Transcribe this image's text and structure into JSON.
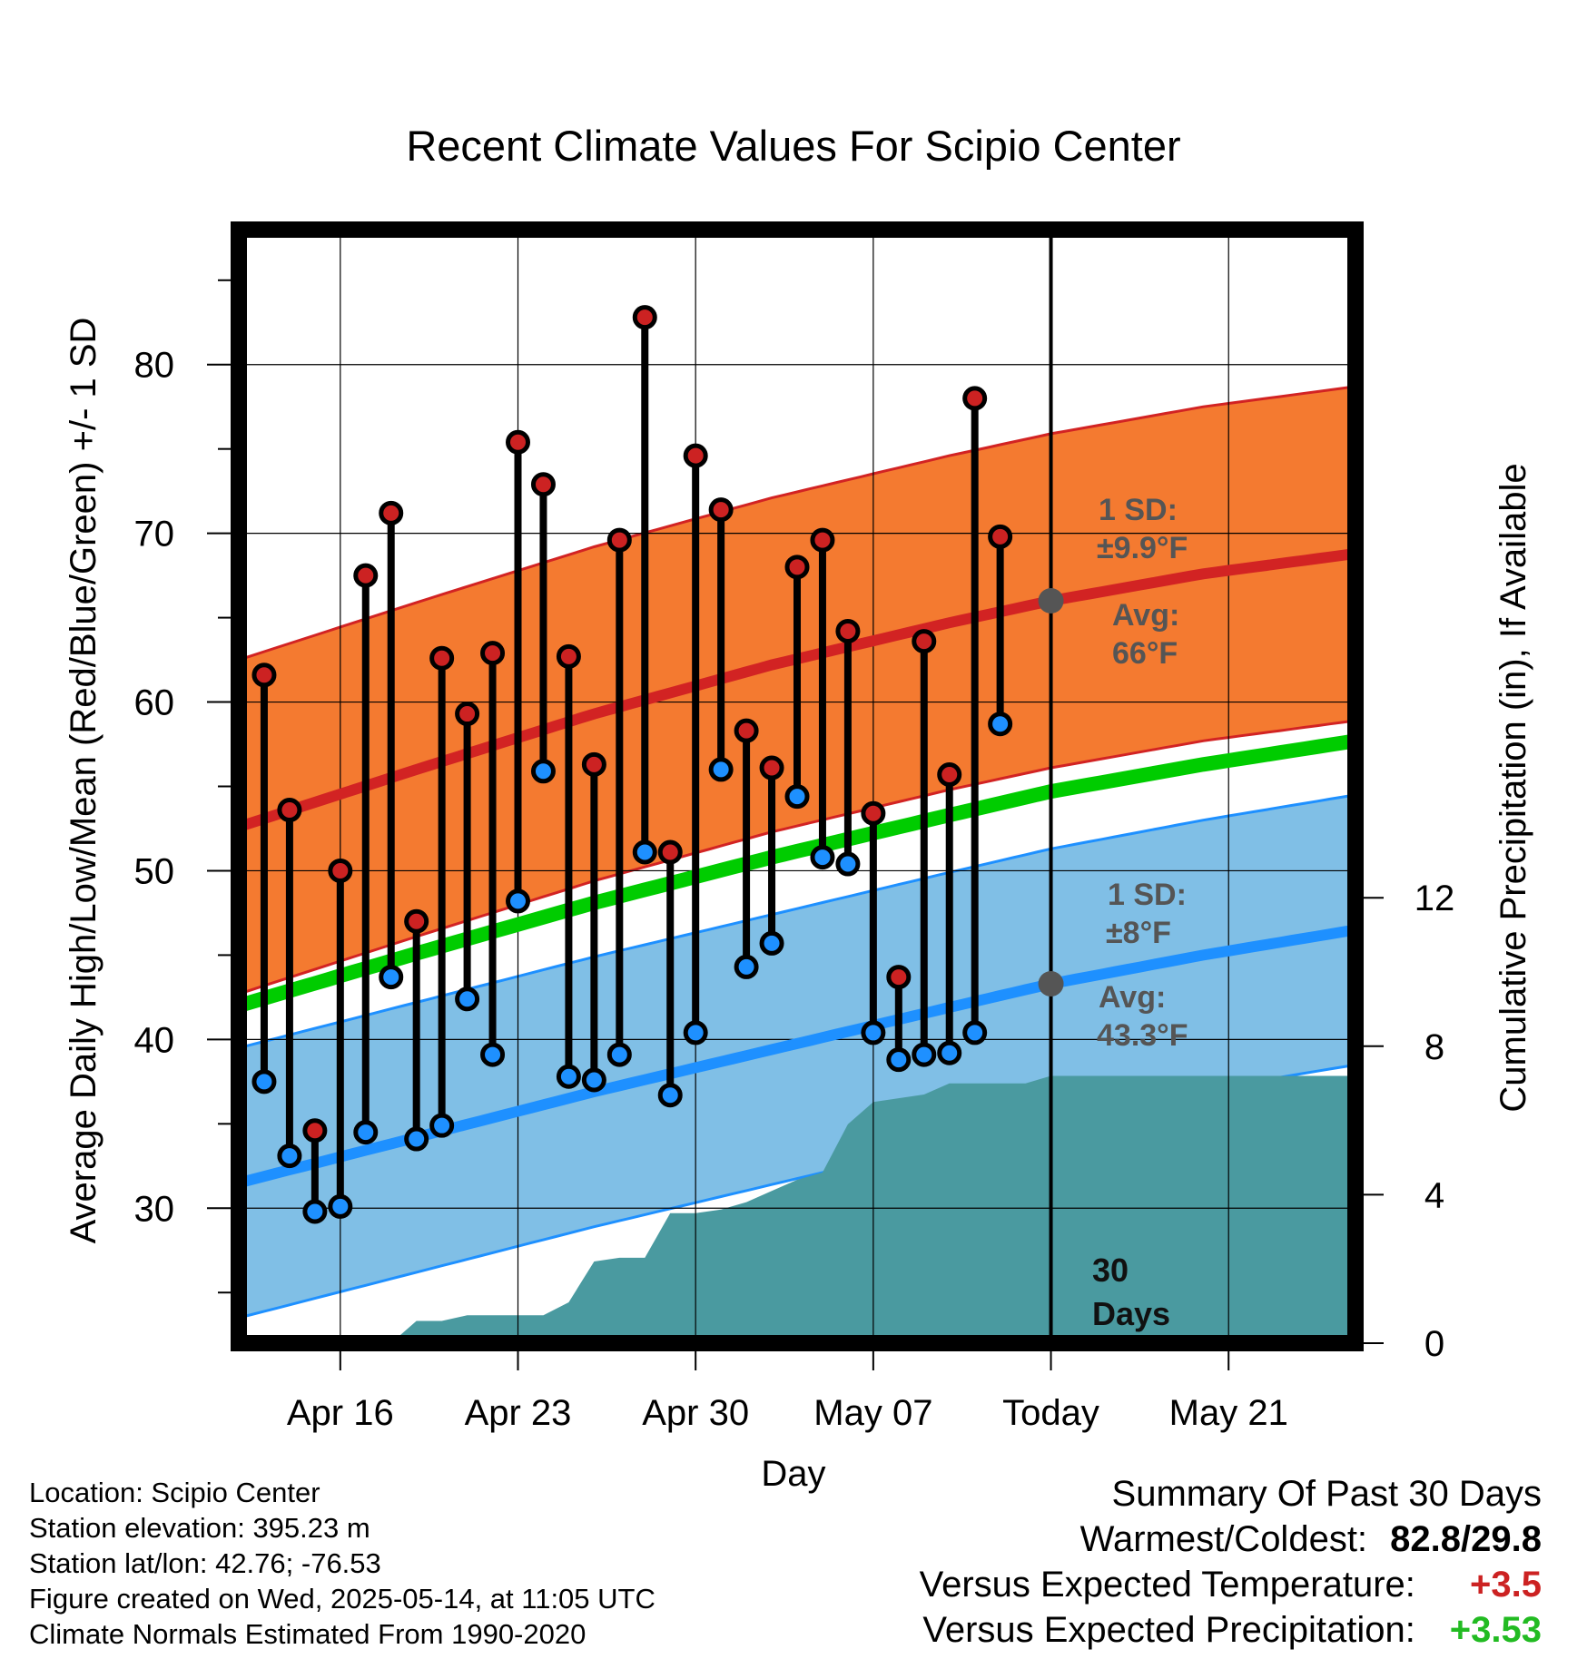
{
  "chart_data": {
    "type": "line",
    "title": "Recent Climate Values For Scipio Center",
    "xlabel": "Day",
    "ylabel": "Average Daily High/Low/Mean (Red/Blue/Green) +/- 1 SD",
    "y2label": "Cumulative Precipitation (in), If Available",
    "ylim": [
      22,
      88
    ],
    "y2lim": [
      0,
      30
    ],
    "xlim": [
      "2025-04-12",
      "2025-05-26"
    ],
    "yticks": [
      30,
      40,
      50,
      60,
      70,
      80
    ],
    "y2ticks": [
      0,
      4,
      8,
      12
    ],
    "xticks": [
      {
        "date": "2025-04-16",
        "label": "Apr 16"
      },
      {
        "date": "2025-04-23",
        "label": "Apr 23"
      },
      {
        "date": "2025-04-30",
        "label": "Apr 30"
      },
      {
        "date": "2025-05-07",
        "label": "May 07"
      },
      {
        "date": "2025-05-14",
        "label": "Today"
      },
      {
        "date": "2025-05-21",
        "label": "May 21"
      }
    ],
    "grid": true,
    "today": "2025-05-14",
    "colors": {
      "high_band": "#f47a30",
      "high_line": "#d22323",
      "low_band": "#80bfe6",
      "low_line": "#1e90ff",
      "mean_line": "#00cc00",
      "precip": "#4a9aa0",
      "high_dot": "#cc2222",
      "low_dot": "#1e90ff",
      "annotation": "#555555"
    },
    "normals": {
      "dates": [
        "2025-04-12",
        "2025-04-19",
        "2025-04-26",
        "2025-05-03",
        "2025-05-10",
        "2025-05-14",
        "2025-05-20",
        "2025-05-26"
      ],
      "high_avg": [
        52.6,
        56.0,
        59.3,
        62.2,
        64.7,
        66.0,
        67.6,
        68.8
      ],
      "high_sd": 9.9,
      "low_avg": [
        31.5,
        34.2,
        36.9,
        39.4,
        41.9,
        43.3,
        45.0,
        46.5
      ],
      "low_sd": 8.0,
      "mean_avg": [
        42.0,
        45.1,
        48.1,
        50.8,
        53.3,
        54.7,
        56.3,
        57.7
      ]
    },
    "daily": {
      "dates": [
        "2025-04-13",
        "2025-04-14",
        "2025-04-15",
        "2025-04-16",
        "2025-04-17",
        "2025-04-18",
        "2025-04-19",
        "2025-04-20",
        "2025-04-21",
        "2025-04-22",
        "2025-04-23",
        "2025-04-24",
        "2025-04-25",
        "2025-04-26",
        "2025-04-27",
        "2025-04-28",
        "2025-04-29",
        "2025-04-30",
        "2025-05-01",
        "2025-05-02",
        "2025-05-03",
        "2025-05-04",
        "2025-05-05",
        "2025-05-06",
        "2025-05-07",
        "2025-05-08",
        "2025-05-09",
        "2025-05-10",
        "2025-05-11",
        "2025-05-12",
        "2025-05-13"
      ],
      "high": [
        61.6,
        53.6,
        34.6,
        50.0,
        67.5,
        71.2,
        47.0,
        62.6,
        59.3,
        62.9,
        75.4,
        72.9,
        62.7,
        56.3,
        69.6,
        82.8,
        51.1,
        74.6,
        71.4,
        58.3,
        56.1,
        68.0,
        69.6,
        64.2,
        53.4,
        43.7,
        63.6,
        55.7,
        78.0,
        69.8,
        null
      ],
      "low": [
        37.5,
        33.1,
        29.8,
        30.1,
        34.5,
        43.7,
        34.1,
        34.9,
        42.4,
        39.1,
        48.2,
        55.9,
        37.8,
        37.6,
        39.1,
        51.1,
        36.7,
        40.4,
        56.0,
        44.3,
        45.7,
        54.4,
        50.8,
        50.4,
        40.4,
        38.8,
        39.1,
        39.2,
        40.4,
        58.7,
        null
      ]
    },
    "precip_cum": {
      "dates": [
        "2025-04-14",
        "2025-04-15",
        "2025-04-16",
        "2025-04-17",
        "2025-04-18",
        "2025-04-19",
        "2025-04-20",
        "2025-04-21",
        "2025-04-22",
        "2025-04-23",
        "2025-04-24",
        "2025-04-25",
        "2025-04-26",
        "2025-04-27",
        "2025-04-28",
        "2025-04-29",
        "2025-04-30",
        "2025-05-01",
        "2025-05-02",
        "2025-05-03",
        "2025-05-04",
        "2025-05-05",
        "2025-05-06",
        "2025-05-07",
        "2025-05-08",
        "2025-05-09",
        "2025-05-10",
        "2025-05-11",
        "2025-05-12",
        "2025-05-13",
        "2025-05-14",
        "2025-05-26"
      ],
      "values": [
        0,
        0,
        0,
        0,
        0,
        0.6,
        0.6,
        0.75,
        0.75,
        0.75,
        0.75,
        1.1,
        2.2,
        2.3,
        2.3,
        3.5,
        3.5,
        3.6,
        3.8,
        4.1,
        4.4,
        4.6,
        5.9,
        6.5,
        6.6,
        6.7,
        7.0,
        7.0,
        7.0,
        7.0,
        7.2,
        7.2
      ]
    },
    "annotations": {
      "high_sd_label": "1 SD:",
      "high_sd_value": "±9.9°F",
      "high_avg_label": "Avg:",
      "high_avg_value": "66°F",
      "low_sd_label": "1 SD:",
      "low_sd_value": "±8°F",
      "low_avg_label": "Avg:",
      "low_avg_value": "43.3°F",
      "period_number": "30",
      "period_unit": "Days"
    }
  },
  "location": {
    "name_line": "Location: Scipio Center",
    "elevation_line": "Station elevation: 395.23 m",
    "latlon_line": "Station lat/lon: 42.76; -76.53",
    "created_line": "Figure created on Wed, 2025-05-14, at 11:05 UTC",
    "normals_line": "Climate Normals Estimated From 1990-2020"
  },
  "summary": {
    "title": "Summary Of Past 30 Days",
    "warm_cold_label": "Warmest/Coldest:",
    "warm_cold_value": "82.8/29.8",
    "temp_label": "Versus Expected Temperature:",
    "temp_value": "+3.5",
    "temp_color": "#cc2222",
    "precip_label": "Versus Expected Precipitation:",
    "precip_value": "+3.53",
    "precip_color": "#22bb22"
  }
}
